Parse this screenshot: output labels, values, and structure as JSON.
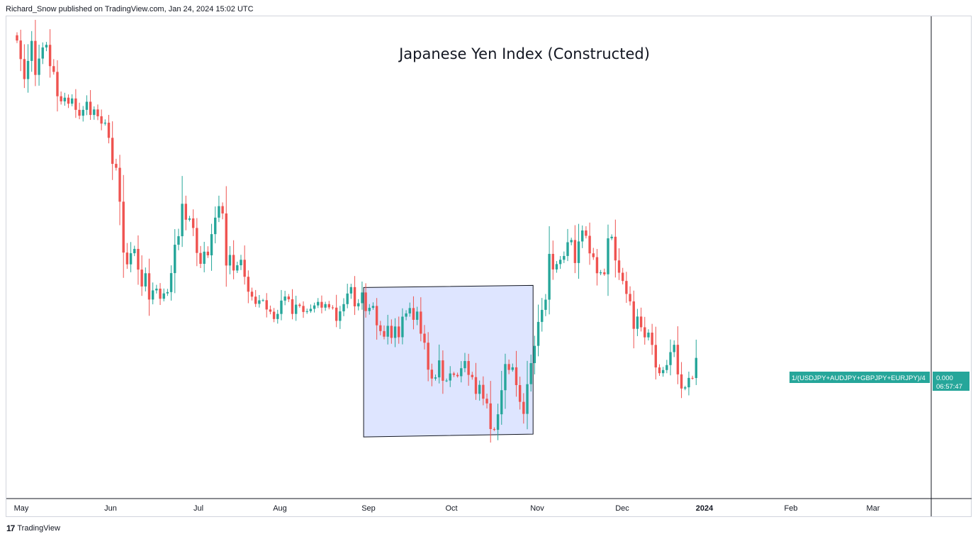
{
  "header": {
    "attribution": "Richard_Snow published on TradingView.com, Jan 24, 2024 15:02 UTC"
  },
  "footer": {
    "brand": "TradingView",
    "logo_glyph": "17"
  },
  "colors": {
    "up": "#26a69a",
    "down": "#ef5350",
    "range_fill": "#d6deff",
    "range_stroke": "#131722",
    "badge": "#26a69a",
    "frame": "#d1d4dc"
  },
  "chart_data": {
    "type": "candlestick",
    "title": "Japanese Yen Index (Constructed)",
    "x_tick_labels": [
      "May",
      "Jun",
      "Jul",
      "Aug",
      "Sep",
      "Oct",
      "Nov",
      "Dec",
      "2024",
      "Feb",
      "Mar"
    ],
    "bold_tick_labels": [
      "2024"
    ],
    "series_label": "1/(USDJPY+AUDJPY+GBPJPY+EURJPY)/4",
    "last_value": "0.000",
    "countdown": "06:57:47",
    "consolidation_box": {
      "start": "Aug 29",
      "end": "Nov 1"
    },
    "closes": [
      2.0,
      0.58,
      -0.95,
      0.44,
      1.97,
      -0.63,
      0.62,
      1.47,
      1.67,
      0.04,
      -0.4,
      -2.26,
      -2.65,
      -2.37,
      -2.83,
      -2.43,
      -3.3,
      -3.75,
      -3.3,
      -2.68,
      -3.69,
      -3.27,
      -3.79,
      -4.35,
      -4.28,
      -5.44,
      -7.43,
      -7.73,
      -10.32,
      -14.21,
      -15.11,
      -14.26,
      -13.93,
      -15.51,
      -16.8,
      -15.79,
      -17.8,
      -17.1,
      -16.97,
      -17.74,
      -17.33,
      -17.23,
      -15.78,
      -13.61,
      -12.96,
      -10.48,
      -11.7,
      -11.6,
      -12.33,
      -14.24,
      -15.07,
      -14.14,
      -14.42,
      -12.8,
      -11.54,
      -10.66,
      -11.22,
      -15.2,
      -14.39,
      -15.58,
      -15.18,
      -14.76,
      -16.06,
      -17.2,
      -17.58,
      -18.13,
      -17.86,
      -17.85,
      -18.56,
      -18.73,
      -19.29,
      -18.9,
      -17.88,
      -17.57,
      -17.78,
      -18.9,
      -18.19,
      -18.29,
      -18.75,
      -18.69,
      -18.51,
      -18.25,
      -17.98,
      -18.42,
      -18.15,
      -18.4,
      -18.42,
      -19.43,
      -18.7,
      -18.15,
      -17.34,
      -16.85,
      -18.32,
      -18.08,
      -17.26,
      -18.68,
      -18.43,
      -18.29,
      -19.77,
      -20.21,
      -20.64,
      -19.81,
      -20.73,
      -19.86,
      -20.68,
      -19.11,
      -18.86,
      -18.45,
      -19.35,
      -18.72,
      -20.41,
      -21.1,
      -23.16,
      -23.84,
      -23.75,
      -22.45,
      -24.01,
      -23.99,
      -23.45,
      -23.56,
      -23.66,
      -23.05,
      -22.5,
      -23.56,
      -23.73,
      -25.01,
      -24.32,
      -25.38,
      -25.74,
      -27.7,
      -27.76,
      -26.57,
      -24.73,
      -22.73,
      -23.18,
      -22.98,
      -24.34,
      -25.62,
      -26.54,
      -24.27,
      -22.66,
      -21.34,
      -19.51,
      -18.59,
      -17.81,
      -14.31,
      -15.5,
      -15.09,
      -14.76,
      -14.47,
      -13.42,
      -13.25,
      -15.01,
      -13.36,
      -12.52,
      -12.93,
      -14.27,
      -14.56,
      -15.79,
      -15.72,
      -15.87,
      -13.12,
      -13.0,
      -14.81,
      -15.75,
      -16.38,
      -17.37,
      -17.94,
      -20.04,
      -19.1,
      -19.92,
      -20.69,
      -20.33,
      -21.27,
      -22.99,
      -23.43,
      -23.19,
      -22.81,
      -21.82,
      -21.26,
      -23.52,
      -24.6,
      -24.51,
      -23.79,
      -23.8,
      -22.26
    ]
  }
}
